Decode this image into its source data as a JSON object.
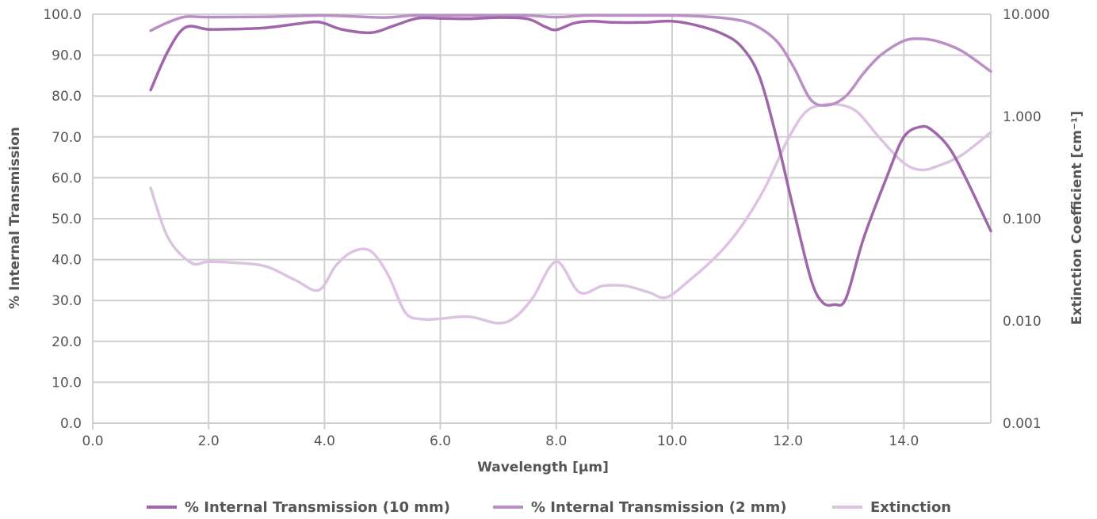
{
  "chart_data": {
    "type": "line",
    "xlabel": "Wavelength [µm]",
    "ylabel_left": "% Internal Transmission",
    "ylabel_right": "Extinction Coefficient [cm⁻¹]",
    "xlim": [
      0,
      15.5
    ],
    "ylim_left": [
      0,
      100
    ],
    "ylim_right": [
      0.001,
      10
    ],
    "right_axis_scale": "log",
    "grid": true,
    "legend_position": "bottom",
    "x_ticks": [
      "0.0",
      "2.0",
      "4.0",
      "6.0",
      "8.0",
      "10.0",
      "12.0",
      "14.0"
    ],
    "y_left_ticks": [
      "0.0",
      "10.0",
      "20.0",
      "30.0",
      "40.0",
      "50.0",
      "60.0",
      "70.0",
      "80.0",
      "90.0",
      "100.0"
    ],
    "y_right_ticks": [
      "0.001",
      "0.010",
      "0.100",
      "1.000",
      "10.000"
    ],
    "series": [
      {
        "name": "% Internal Transmission (10 mm)",
        "axis": "left",
        "color": "#a066aa",
        "x": [
          1.0,
          1.3,
          1.6,
          2.0,
          2.5,
          3.0,
          3.5,
          3.9,
          4.3,
          4.8,
          5.2,
          5.6,
          6.0,
          6.5,
          7.0,
          7.5,
          7.8,
          8.0,
          8.3,
          8.6,
          9.0,
          9.5,
          10.0,
          10.5,
          10.9,
          11.2,
          11.5,
          11.8,
          12.1,
          12.4,
          12.6,
          12.8,
          13.0,
          13.3,
          13.7,
          14.0,
          14.3,
          14.5,
          14.8,
          15.1,
          15.5
        ],
        "y": [
          81.5,
          91,
          96.8,
          96.3,
          96.4,
          96.7,
          97.6,
          98.1,
          96.3,
          95.5,
          97.2,
          99,
          99,
          98.9,
          99.2,
          98.9,
          97,
          96.2,
          97.8,
          98.3,
          98,
          98,
          98.3,
          97,
          95,
          92,
          85,
          70,
          52,
          35,
          29.5,
          29,
          30.5,
          45,
          60,
          70,
          72.5,
          71.5,
          67,
          59,
          47
        ]
      },
      {
        "name": "% Internal Transmission (2 mm)",
        "axis": "left",
        "color": "#bb8fc6",
        "x": [
          1.0,
          1.3,
          1.6,
          2.0,
          3.0,
          4.0,
          5.0,
          5.5,
          6.0,
          7.0,
          7.5,
          8.0,
          8.5,
          9.0,
          10.0,
          10.5,
          11.0,
          11.4,
          11.8,
          12.1,
          12.4,
          12.7,
          13.0,
          13.3,
          13.6,
          14.0,
          14.3,
          14.6,
          15.0,
          15.5
        ],
        "y": [
          96,
          98,
          99.4,
          99.3,
          99.4,
          99.7,
          99.2,
          99.7,
          99.7,
          99.7,
          99.7,
          99.3,
          99.7,
          99.7,
          99.7,
          99.5,
          98.9,
          97.5,
          93.5,
          87,
          79,
          77.8,
          80,
          85.5,
          90,
          93.5,
          94,
          93.3,
          91,
          86
        ]
      },
      {
        "name": "Extinction",
        "axis": "right",
        "color": "#dcc3e1",
        "x": [
          1.0,
          1.3,
          1.7,
          2.0,
          2.5,
          3.0,
          3.5,
          3.9,
          4.2,
          4.5,
          4.8,
          5.1,
          5.4,
          5.7,
          6.0,
          6.5,
          7.0,
          7.3,
          7.6,
          8.0,
          8.4,
          8.8,
          9.2,
          9.6,
          9.9,
          10.3,
          10.8,
          11.2,
          11.6,
          12.0,
          12.3,
          12.6,
          12.9,
          13.2,
          13.6,
          14.0,
          14.3,
          14.6,
          15.0,
          15.5
        ],
        "y": [
          0.2,
          0.065,
          0.037,
          0.038,
          0.037,
          0.034,
          0.025,
          0.02,
          0.035,
          0.048,
          0.048,
          0.028,
          0.012,
          0.0104,
          0.0105,
          0.011,
          0.0095,
          0.011,
          0.017,
          0.038,
          0.019,
          0.022,
          0.022,
          0.019,
          0.017,
          0.025,
          0.045,
          0.085,
          0.2,
          0.6,
          1.1,
          1.3,
          1.3,
          1.1,
          0.6,
          0.35,
          0.3,
          0.33,
          0.42,
          0.7
        ]
      }
    ]
  }
}
